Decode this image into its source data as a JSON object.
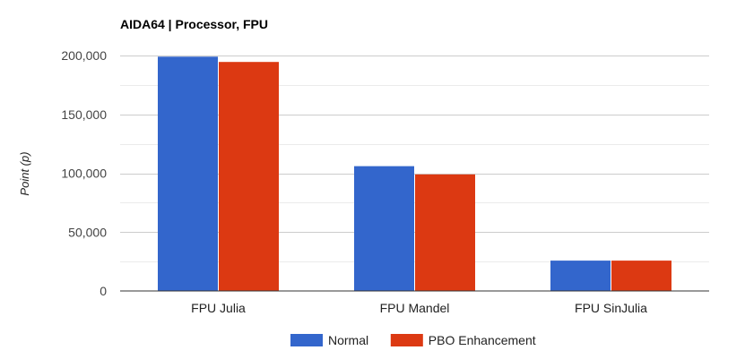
{
  "chart_data": {
    "type": "bar",
    "title": "AIDA64 | Processor, FPU",
    "xlabel": "",
    "ylabel": "Point (p)",
    "categories": [
      "FPU Julia",
      "FPU Mandel",
      "FPU SinJulia"
    ],
    "series": [
      {
        "name": "Normal",
        "color": "#3366cc",
        "values": [
          199000,
          106000,
          25800
        ]
      },
      {
        "name": "PBO Enhancement",
        "color": "#dc3912",
        "values": [
          194500,
          99000,
          25800
        ]
      }
    ],
    "ylim": [
      0,
      200000
    ],
    "yticks": [
      0,
      50000,
      100000,
      150000,
      200000
    ],
    "ytick_labels": [
      "0",
      "50,000",
      "100,000",
      "150,000",
      "200,000"
    ],
    "grid": true,
    "legend_position": "bottom"
  }
}
